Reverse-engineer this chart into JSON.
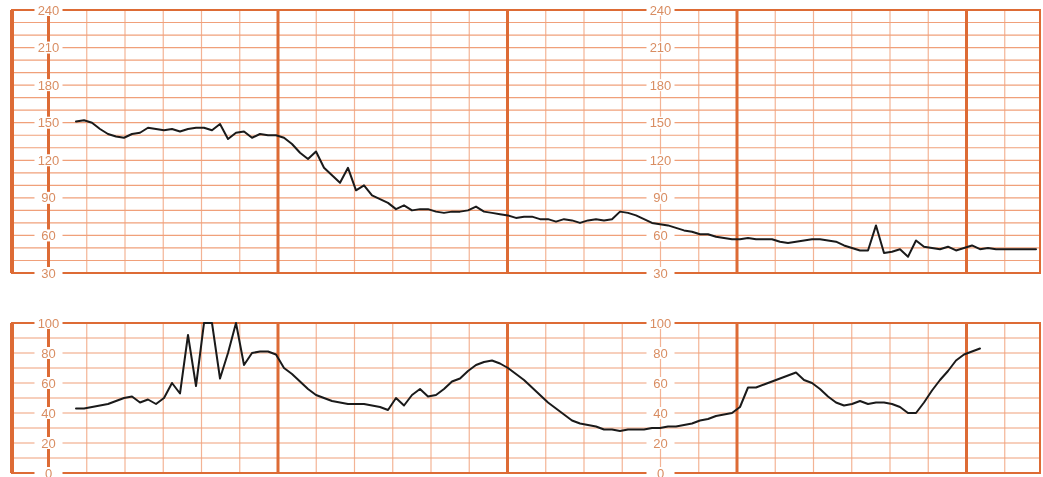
{
  "chart_data": [
    {
      "type": "line",
      "categories": [
        null,
        null,
        null,
        null,
        null,
        null,
        null,
        null,
        null,
        null,
        null,
        null,
        null,
        null,
        null,
        null,
        null,
        null,
        null,
        null,
        null,
        null,
        null,
        null,
        null,
        null,
        null,
        null,
        null,
        null,
        null,
        null,
        null,
        null,
        null,
        null,
        null,
        null,
        null,
        null,
        null,
        null,
        null,
        null,
        null,
        null,
        null,
        null,
        null,
        null,
        null,
        null,
        null,
        null,
        null,
        null,
        null,
        null,
        null,
        null,
        null,
        null,
        null,
        null,
        null,
        null,
        null,
        null,
        null,
        null,
        null,
        null,
        null,
        null,
        null,
        null,
        null,
        null,
        null,
        null,
        null,
        null,
        null,
        null,
        null,
        null,
        null,
        null,
        null,
        null,
        null,
        null,
        null,
        null,
        null,
        null,
        null,
        null,
        null,
        null,
        null,
        null,
        null,
        null,
        null,
        null,
        null,
        null,
        null,
        null,
        null,
        null,
        null,
        null,
        null,
        null,
        null,
        null,
        null,
        null,
        null,
        null,
        null,
        null,
        null,
        null,
        null,
        null,
        null
      ],
      "series": [
        {
          "color": "#1a1a1a",
          "values": [
            null,
            null,
            null,
            null,
            null,
            null,
            null,
            null,
            151,
            152,
            150,
            145,
            141,
            139,
            138,
            141,
            142,
            146,
            145,
            144,
            145,
            143,
            145,
            146,
            146,
            144,
            149,
            137,
            142,
            143,
            138,
            141,
            140,
            140,
            138,
            133,
            126,
            121,
            127,
            114,
            108,
            102,
            114,
            96,
            100,
            92,
            89,
            86,
            81,
            84,
            80,
            81,
            81,
            79,
            78,
            79,
            79,
            80,
            83,
            79,
            78,
            77,
            76,
            74,
            75,
            75,
            73,
            73,
            71,
            73,
            72,
            70,
            72,
            73,
            72,
            73,
            79,
            78,
            76,
            73,
            70,
            69,
            68,
            66,
            64,
            63,
            61,
            61,
            59,
            58,
            57,
            57,
            58,
            57,
            57,
            57,
            55,
            54,
            55,
            56,
            57,
            57,
            56,
            55,
            52,
            50,
            48,
            48,
            68,
            46,
            47,
            49,
            43,
            56,
            51,
            50,
            49,
            51,
            48,
            50,
            52,
            49,
            50,
            49,
            49,
            49,
            49,
            49,
            49
          ]
        }
      ],
      "ylim": [
        30,
        240
      ],
      "yticks": [
        30,
        60,
        90,
        120,
        150,
        180,
        210,
        240
      ],
      "y2lim": [
        30,
        240
      ],
      "y2ticks": [
        30,
        60,
        90,
        120,
        150,
        180,
        210,
        240
      ],
      "grid": true
    },
    {
      "type": "line",
      "categories": [
        null,
        null,
        null,
        null,
        null,
        null,
        null,
        null,
        null,
        null,
        null,
        null,
        null,
        null,
        null,
        null,
        null,
        null,
        null,
        null,
        null,
        null,
        null,
        null,
        null,
        null,
        null,
        null,
        null,
        null,
        null,
        null,
        null,
        null,
        null,
        null,
        null,
        null,
        null,
        null,
        null,
        null,
        null,
        null,
        null,
        null,
        null,
        null,
        null,
        null,
        null,
        null,
        null,
        null,
        null,
        null,
        null,
        null,
        null,
        null,
        null,
        null,
        null,
        null,
        null,
        null,
        null,
        null,
        null,
        null,
        null,
        null,
        null,
        null,
        null,
        null,
        null,
        null,
        null,
        null,
        null,
        null,
        null,
        null,
        null,
        null,
        null,
        null,
        null,
        null,
        null,
        null,
        null,
        null,
        null,
        null,
        null,
        null,
        null,
        null,
        null,
        null,
        null,
        null,
        null,
        null,
        null,
        null,
        null,
        null,
        null,
        null,
        null,
        null,
        null,
        null,
        null,
        null,
        null,
        null,
        null,
        null,
        null,
        null,
        null,
        null,
        null,
        null,
        null
      ],
      "series": [
        {
          "color": "#1a1a1a",
          "values": [
            null,
            null,
            null,
            null,
            null,
            null,
            null,
            null,
            43,
            43,
            44,
            45,
            46,
            48,
            50,
            51,
            47,
            49,
            46,
            50,
            60,
            53,
            92,
            58,
            100,
            100,
            63,
            80,
            100,
            72,
            80,
            81,
            81,
            79,
            70,
            66,
            61,
            56,
            52,
            50,
            48,
            47,
            46,
            46,
            46,
            45,
            44,
            42,
            50,
            45,
            52,
            56,
            51,
            52,
            56,
            61,
            63,
            68,
            72,
            74,
            75,
            73,
            70,
            66,
            62,
            57,
            52,
            47,
            43,
            39,
            35,
            33,
            32,
            31,
            29,
            29,
            28,
            29,
            29,
            29,
            30,
            30,
            31,
            31,
            32,
            33,
            35,
            36,
            38,
            39,
            40,
            44,
            57,
            57,
            59,
            61,
            63,
            65,
            67,
            62,
            60,
            56,
            51,
            47,
            45,
            46,
            48,
            46,
            47,
            47,
            46,
            44,
            40,
            40,
            47,
            55,
            62,
            68,
            75,
            79,
            81,
            83,
            null,
            null,
            null,
            null,
            null,
            null,
            null
          ]
        }
      ],
      "ylim": [
        0,
        100
      ],
      "yticks": [
        0,
        20,
        40,
        60,
        80,
        100
      ],
      "y2lim": [
        0,
        100
      ],
      "y2ticks": [
        0,
        20,
        40,
        60,
        80,
        100
      ],
      "grid": true
    }
  ]
}
